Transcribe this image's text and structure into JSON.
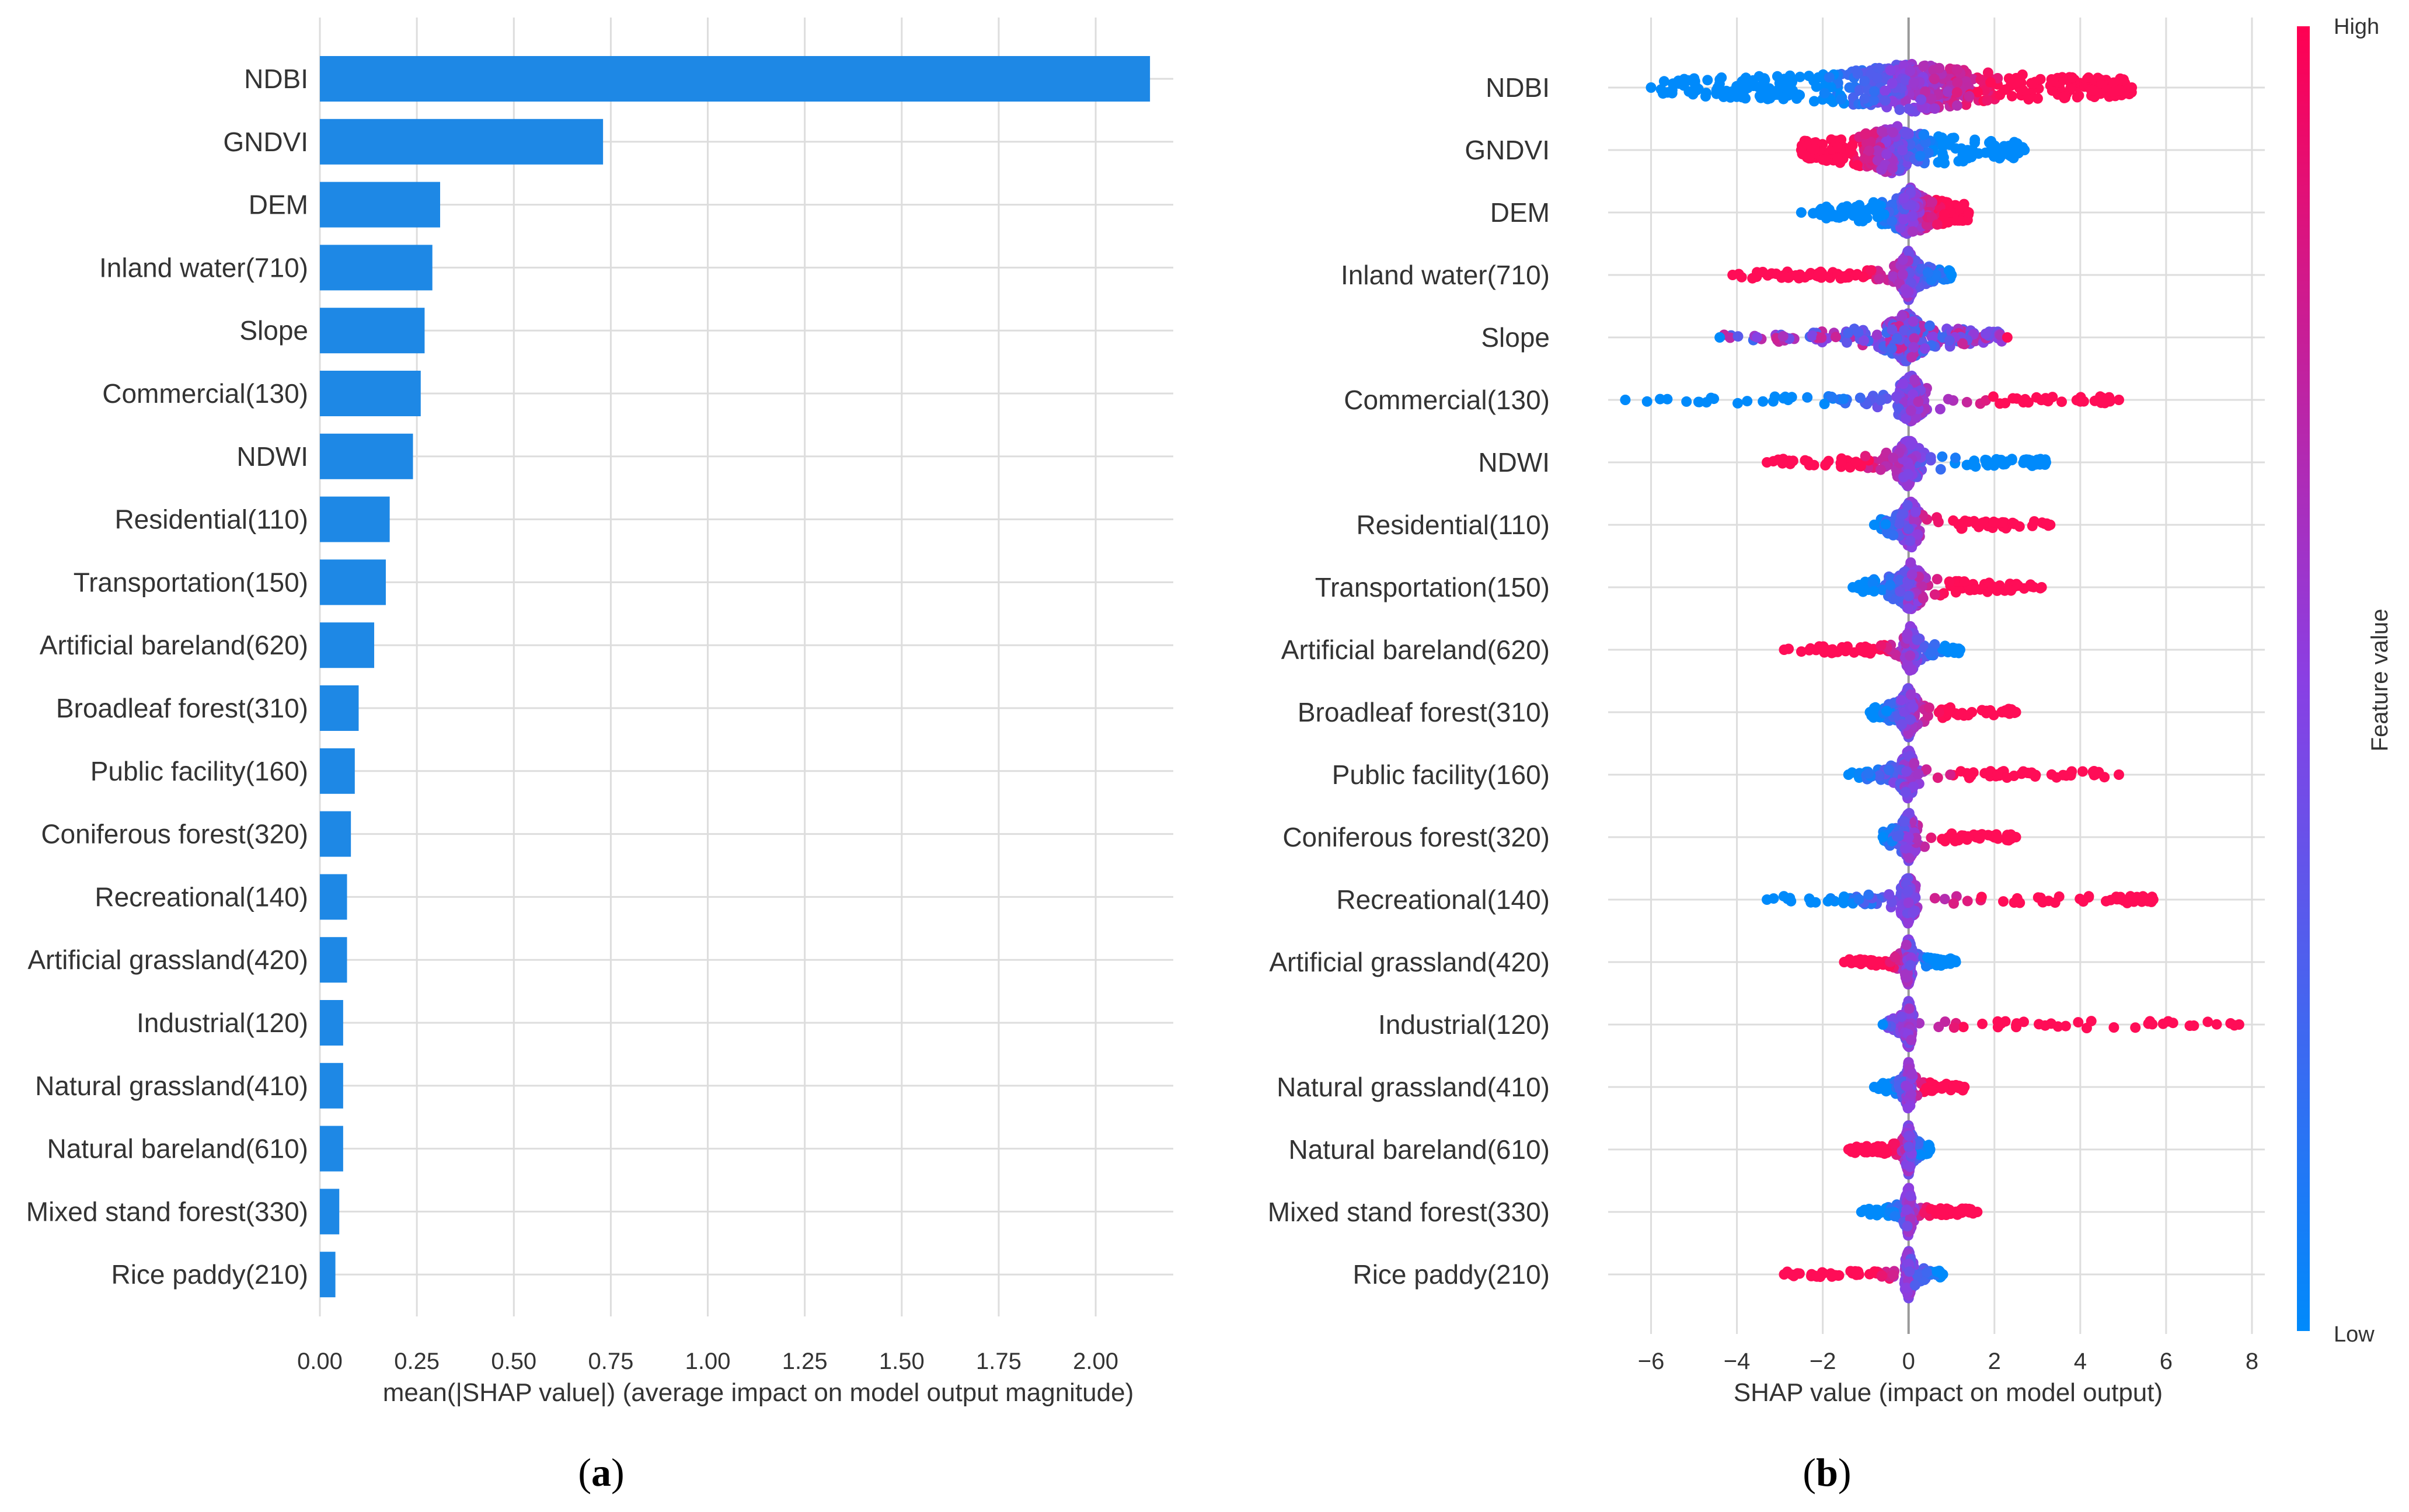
{
  "panel_a": {
    "caption_letter": "a",
    "caption_open": "(",
    "caption_close": ")"
  },
  "panel_b": {
    "caption_letter": "b",
    "caption_open": "(",
    "caption_close": ")"
  },
  "colors": {
    "bar": "#1e88e5",
    "low": "#1e88e5",
    "high": "#ff0d57",
    "grid": "#dddddd",
    "text": "#333333",
    "zero_line": "#999999"
  },
  "chart_data": [
    {
      "type": "bar",
      "orientation": "horizontal",
      "title": "",
      "xlabel": "mean(|SHAP value|) (average impact on model output magnitude)",
      "ylabel": "",
      "xlim": [
        0,
        2.2
      ],
      "xticks": [
        0,
        0.25,
        0.5,
        0.75,
        1.0,
        1.25,
        1.5,
        1.75,
        2.0
      ],
      "xtick_labels": [
        "0.00",
        "0.25",
        "0.50",
        "0.75",
        "1.00",
        "1.25",
        "1.50",
        "1.75",
        "2.00"
      ],
      "categories": [
        "NDBI",
        "GNDVI",
        "DEM",
        "Inland water(710)",
        "Slope",
        "Commercial(130)",
        "NDWI",
        "Residential(110)",
        "Transportation(150)",
        "Artificial bareland(620)",
        "Broadleaf forest(310)",
        "Public facility(160)",
        "Coniferous forest(320)",
        "Recreational(140)",
        "Artificial grassland(420)",
        "Industrial(120)",
        "Natural grassland(410)",
        "Natural bareland(610)",
        "Mixed stand forest(330)",
        "Rice paddy(210)"
      ],
      "values": [
        2.14,
        0.73,
        0.31,
        0.29,
        0.27,
        0.26,
        0.24,
        0.18,
        0.17,
        0.14,
        0.1,
        0.09,
        0.08,
        0.07,
        0.07,
        0.06,
        0.06,
        0.06,
        0.05,
        0.04
      ],
      "grid": true
    },
    {
      "type": "scatter",
      "subtype": "beeswarm",
      "title": "",
      "xlabel": "SHAP value (impact on model output)",
      "ylabel": "",
      "xlim": [
        -7,
        8.3
      ],
      "xticks": [
        -6,
        -4,
        -2,
        0,
        2,
        4,
        6,
        8
      ],
      "xtick_labels": [
        "−6",
        "−4",
        "−2",
        "0",
        "2",
        "4",
        "6",
        "8"
      ],
      "categories": [
        "NDBI",
        "GNDVI",
        "DEM",
        "Inland water(710)",
        "Slope",
        "Commercial(130)",
        "NDWI",
        "Residential(110)",
        "Transportation(150)",
        "Artificial bareland(620)",
        "Broadleaf forest(310)",
        "Public facility(160)",
        "Coniferous forest(320)",
        "Recreational(140)",
        "Artificial grassland(420)",
        "Industrial(120)",
        "Natural grassland(410)",
        "Natural bareland(610)",
        "Mixed stand forest(330)",
        "Rice paddy(210)"
      ],
      "ranges": [
        {
          "min": -6.0,
          "max": 5.2,
          "q1": -2.5,
          "q3": 2.5
        },
        {
          "min": -2.5,
          "max": 2.7,
          "q1": -1.5,
          "q3": 0.8
        },
        {
          "min": -2.5,
          "max": 1.4,
          "q1": -0.5,
          "q3": 0.6
        },
        {
          "min": -4.1,
          "max": 1.0,
          "q1": -0.2,
          "q3": 0.2
        },
        {
          "min": -4.4,
          "max": 2.3,
          "q1": -0.6,
          "q3": 0.5
        },
        {
          "min": -6.6,
          "max": 4.9,
          "q1": -0.3,
          "q3": 0.4
        },
        {
          "min": -3.3,
          "max": 3.2,
          "q1": -0.3,
          "q3": 0.3
        },
        {
          "min": -0.8,
          "max": 3.3,
          "q1": -0.2,
          "q3": 0.3
        },
        {
          "min": -1.3,
          "max": 3.1,
          "q1": -0.3,
          "q3": 0.4
        },
        {
          "min": -2.9,
          "max": 1.2,
          "q1": -0.1,
          "q3": 0.2
        },
        {
          "min": -0.9,
          "max": 2.5,
          "q1": -0.2,
          "q3": 0.2
        },
        {
          "min": -1.4,
          "max": 4.9,
          "q1": -0.2,
          "q3": 0.2
        },
        {
          "min": -0.6,
          "max": 2.5,
          "q1": -0.2,
          "q3": 0.2
        },
        {
          "min": -3.3,
          "max": 5.7,
          "q1": -0.2,
          "q3": 0.2
        },
        {
          "min": -1.5,
          "max": 1.1,
          "q1": -0.1,
          "q3": 0.1
        },
        {
          "min": -0.6,
          "max": 7.7,
          "q1": -0.1,
          "q3": 0.1
        },
        {
          "min": -0.8,
          "max": 1.3,
          "q1": -0.1,
          "q3": 0.1
        },
        {
          "min": -1.4,
          "max": 0.5,
          "q1": -0.1,
          "q3": 0.1
        },
        {
          "min": -1.1,
          "max": 1.6,
          "q1": -0.1,
          "q3": 0.1
        },
        {
          "min": -2.9,
          "max": 0.8,
          "q1": -0.1,
          "q3": 0.1
        }
      ],
      "colorbar": {
        "label": "Feature value",
        "high_label": "High",
        "low_label": "Low"
      },
      "grid": true
    }
  ]
}
